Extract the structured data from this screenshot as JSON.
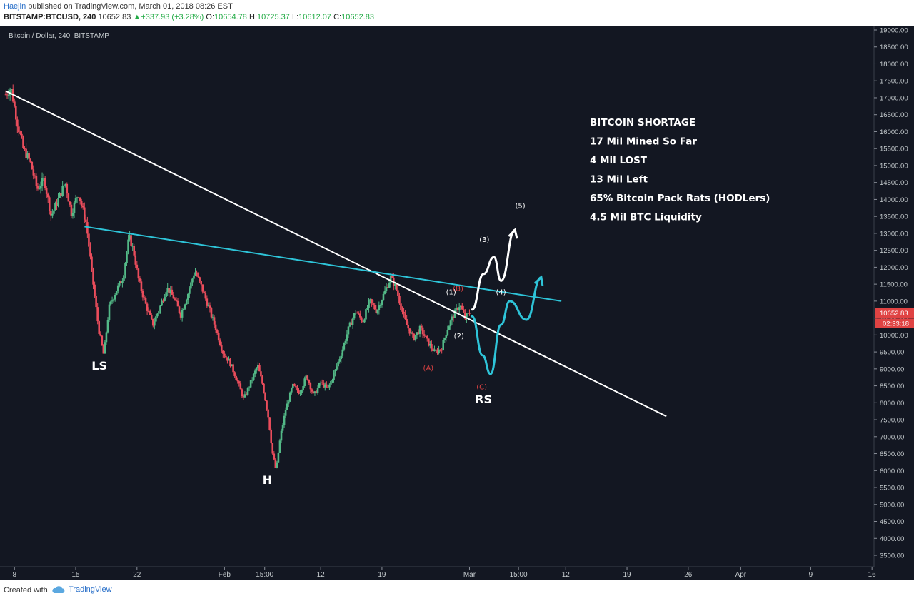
{
  "header": {
    "author": "Haejin",
    "published": " published on TradingView.com, March 01, 2018 08:26 EST",
    "symbol": "BITSTAMP:BTCUSD, 240",
    "price": "10652.83",
    "change": "+337.93 (+3.28%)",
    "o_label": "O:",
    "o_value": "10654.78",
    "h_label": "H:",
    "h_value": "10725.37",
    "l_label": "L:",
    "l_value": "10612.07",
    "c_label": "C:",
    "c_value": "10652.83"
  },
  "footer": {
    "created_with": "Created with",
    "brand": "TradingView"
  },
  "chart_data": {
    "type": "candlestick",
    "title": "Bitcoin / Dollar, 240, BITSTAMP",
    "xlabel": "",
    "ylabel": "",
    "ylim": [
      3000,
      19200
    ],
    "y_ticks": [
      3500,
      4000,
      4500,
      5000,
      5500,
      6000,
      6500,
      7000,
      7500,
      8000,
      8500,
      9000,
      9500,
      10000,
      10500,
      11000,
      11500,
      12000,
      12500,
      13000,
      13500,
      14000,
      14500,
      15000,
      15500,
      16000,
      16500,
      17000,
      17500,
      18000,
      18500,
      19000
    ],
    "y_tick_labels": [
      "3500.00",
      "4000.00",
      "4500.00",
      "5000.00",
      "5500.00",
      "6000.00",
      "6500.00",
      "7000.00",
      "7500.00",
      "8000.00",
      "8500.00",
      "9000.00",
      "9500.00",
      "10000.00",
      "10500.00",
      "11000.00",
      "11500.00",
      "12000.00",
      "12500.00",
      "13000.00",
      "13500.00",
      "14000.00",
      "14500.00",
      "15000.00",
      "15500.00",
      "16000.00",
      "16500.00",
      "17000.00",
      "17500.00",
      "18000.00",
      "18500.00",
      "19000.00"
    ],
    "x_range_days": [
      0,
      78.5
    ],
    "x_ticks": [
      {
        "label": "8",
        "day": 1
      },
      {
        "label": "15",
        "day": 8
      },
      {
        "label": "22",
        "day": 15
      },
      {
        "label": "Feb",
        "day": 25
      },
      {
        "label": "15:00",
        "day": 29.6
      },
      {
        "label": "12",
        "day": 36
      },
      {
        "label": "19",
        "day": 43
      },
      {
        "label": "Mar",
        "day": 53
      },
      {
        "label": "15:00",
        "day": 58.6
      },
      {
        "label": "12",
        "day": 64
      },
      {
        "label": "19",
        "day": 71
      },
      {
        "label": "26",
        "day": 78
      },
      {
        "label": "Apr",
        "day": 84
      },
      {
        "label": "9",
        "day": 92
      },
      {
        "label": "16",
        "day": 99
      }
    ],
    "price_path": [
      [
        0,
        17100
      ],
      [
        0.6,
        17300
      ],
      [
        1.3,
        16300
      ],
      [
        2,
        15500
      ],
      [
        2.8,
        15100
      ],
      [
        3.6,
        14300
      ],
      [
        4.4,
        14600
      ],
      [
        5.2,
        13500
      ],
      [
        6,
        14000
      ],
      [
        6.8,
        14500
      ],
      [
        7.5,
        13600
      ],
      [
        8.3,
        14200
      ],
      [
        9.2,
        13300
      ],
      [
        10,
        11500
      ],
      [
        10.6,
        10200
      ],
      [
        11.2,
        9400
      ],
      [
        11.8,
        10800
      ],
      [
        12.6,
        11300
      ],
      [
        13.4,
        11700
      ],
      [
        14.1,
        12900
      ],
      [
        14.6,
        12500
      ],
      [
        15.2,
        11600
      ],
      [
        16,
        10900
      ],
      [
        16.8,
        10300
      ],
      [
        17.6,
        10800
      ],
      [
        18.4,
        11400
      ],
      [
        19.2,
        11100
      ],
      [
        20,
        10600
      ],
      [
        20.8,
        11200
      ],
      [
        21.6,
        11900
      ],
      [
        22.4,
        11400
      ],
      [
        23.2,
        10800
      ],
      [
        24,
        10200
      ],
      [
        24.8,
        9500
      ],
      [
        25.6,
        9200
      ],
      [
        26.4,
        8700
      ],
      [
        27.2,
        8100
      ],
      [
        28,
        8600
      ],
      [
        28.8,
        9100
      ],
      [
        29.4,
        8500
      ],
      [
        30,
        7600
      ],
      [
        30.5,
        6500
      ],
      [
        30.9,
        6000
      ],
      [
        31.4,
        7000
      ],
      [
        32,
        7800
      ],
      [
        32.8,
        8500
      ],
      [
        33.6,
        8300
      ],
      [
        34.4,
        8800
      ],
      [
        35.2,
        8200
      ],
      [
        36,
        8600
      ],
      [
        36.8,
        8400
      ],
      [
        37.6,
        8900
      ],
      [
        38.4,
        9500
      ],
      [
        39.2,
        10200
      ],
      [
        40,
        10700
      ],
      [
        40.8,
        10400
      ],
      [
        41.6,
        11000
      ],
      [
        42.4,
        10700
      ],
      [
        43.2,
        11200
      ],
      [
        44,
        11700
      ],
      [
        44.6,
        11400
      ],
      [
        45.2,
        10800
      ],
      [
        45.8,
        10300
      ],
      [
        46.6,
        9900
      ],
      [
        47.4,
        10200
      ],
      [
        48.2,
        9800
      ],
      [
        49,
        9500
      ],
      [
        49.8,
        9600
      ],
      [
        50.5,
        10200
      ],
      [
        51.2,
        10600
      ],
      [
        51.9,
        10900
      ],
      [
        52.5,
        10500
      ],
      [
        53,
        10650
      ]
    ],
    "current_price": "10652.83",
    "countdown": "02:33:18",
    "trendlines": [
      {
        "name": "descending",
        "color": "#ffffff",
        "from": [
          0,
          17200
        ],
        "to": [
          75.5,
          7600
        ]
      },
      {
        "name": "neckline",
        "color": "#2ec4d8",
        "from": [
          9,
          13200
        ],
        "to": [
          63.5,
          11000
        ]
      }
    ],
    "projections": [
      {
        "name": "bullish",
        "color": "#ffffff",
        "points": [
          [
            53.3,
            10750
          ],
          [
            54.6,
            11800
          ],
          [
            55.8,
            12300
          ],
          [
            56.6,
            11600
          ],
          [
            58.2,
            13100
          ]
        ]
      },
      {
        "name": "alternate",
        "color": "#2ec4d8",
        "points": [
          [
            53.3,
            10550
          ],
          [
            54.5,
            9400
          ],
          [
            55.4,
            8850
          ],
          [
            56.6,
            10300
          ],
          [
            57.6,
            11000
          ],
          [
            59.5,
            10450
          ],
          [
            61.2,
            11700
          ]
        ]
      }
    ],
    "annotations": [
      {
        "text": "LS",
        "day": 10.7,
        "price": 8980,
        "color": "#ffffff",
        "size": "big"
      },
      {
        "text": "H",
        "day": 29.9,
        "price": 5610,
        "color": "#ffffff",
        "size": "big"
      },
      {
        "text": "RS",
        "day": 54.6,
        "price": 7990,
        "color": "#ffffff",
        "size": "big"
      },
      {
        "text": "(A)",
        "day": 48.3,
        "price": 8950,
        "color": "#e04343",
        "size": "small"
      },
      {
        "text": "(B)",
        "day": 51.7,
        "price": 11300,
        "color": "#e04343",
        "size": "small"
      },
      {
        "text": "(C)",
        "day": 54.4,
        "price": 8400,
        "color": "#e04343",
        "size": "small"
      },
      {
        "text": "(1)",
        "day": 50.9,
        "price": 11200,
        "color": "#ffffff",
        "size": "small"
      },
      {
        "text": "(2)",
        "day": 51.8,
        "price": 9900,
        "color": "#ffffff",
        "size": "small"
      },
      {
        "text": "(3)",
        "day": 54.7,
        "price": 12750,
        "color": "#ffffff",
        "size": "small"
      },
      {
        "text": "(4)",
        "day": 56.6,
        "price": 11200,
        "color": "#ffffff",
        "size": "small"
      },
      {
        "text": "(5)",
        "day": 58.8,
        "price": 13750,
        "color": "#ffffff",
        "size": "small"
      }
    ],
    "notes": [
      "BITCOIN SHORTAGE",
      "17 Mil Mined So Far",
      "4 Mil LOST",
      "13 Mil Left",
      "65% Bitcoin Pack Rats (HODLers)",
      "4.5 Mil BTC Liquidity"
    ]
  },
  "colors": {
    "background": "#131722",
    "axis_bg": "#131722",
    "grid": "#1f2433",
    "axis_text": "#c5cbce",
    "up_candle": "#53b987",
    "down_candle": "#eb4d5c",
    "price_tag": "#e04343"
  }
}
